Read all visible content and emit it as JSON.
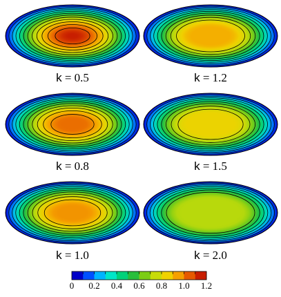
{
  "panels": [
    {
      "label": "k",
      "value": "0.5",
      "peak": 1.2
    },
    {
      "label": "k",
      "value": "1.2",
      "peak": 0.95
    },
    {
      "label": "k",
      "value": "0.8",
      "peak": 1.06
    },
    {
      "label": "k",
      "value": "1.5",
      "peak": 0.86
    },
    {
      "label": "k",
      "value": "1.0",
      "peak": 1.0
    },
    {
      "label": "k",
      "value": "2.0",
      "peak": 0.74
    }
  ],
  "colorbar": {
    "min": 0,
    "max": 1.2,
    "ticks": [
      "0",
      "0.2",
      "0.4",
      "0.6",
      "0.8",
      "1.0",
      "1.2"
    ],
    "colors": [
      "#0000c8",
      "#0050ff",
      "#00b4ff",
      "#00e6c8",
      "#00d27a",
      "#28be3c",
      "#7ccd14",
      "#c8dc0a",
      "#f0d200",
      "#f5a000",
      "#e65a00",
      "#c81e00"
    ]
  }
}
